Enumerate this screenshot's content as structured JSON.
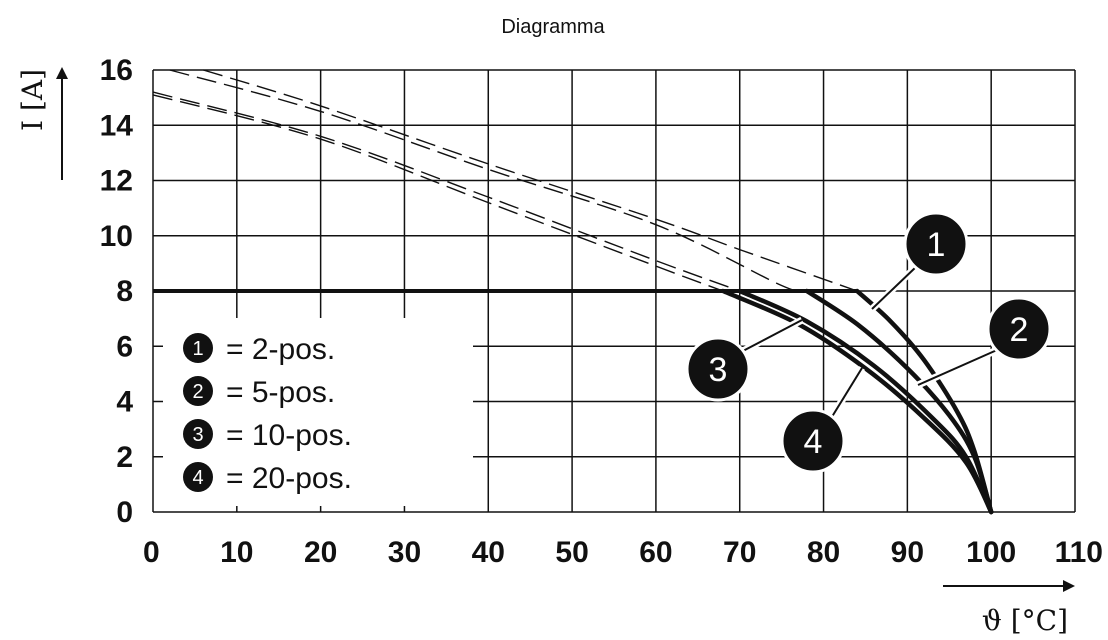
{
  "chart_data": {
    "type": "line",
    "title": "Diagramma",
    "xlabel": "ϑ [°C]",
    "ylabel": "I [A]",
    "xlim": [
      0,
      110
    ],
    "ylim": [
      0,
      16
    ],
    "x_ticks": [
      0,
      10,
      20,
      30,
      40,
      50,
      60,
      70,
      80,
      90,
      100,
      110
    ],
    "y_ticks": [
      0,
      2,
      4,
      6,
      8,
      10,
      12,
      14,
      16
    ],
    "grid": true,
    "max_current_line": {
      "value": 8,
      "x_range": [
        0,
        84
      ]
    },
    "series": [
      {
        "marker": "1",
        "dashed_extension": [
          [
            6,
            16
          ],
          [
            20,
            14.7
          ],
          [
            40,
            12.6
          ],
          [
            60,
            10.6
          ],
          [
            70,
            9.5
          ],
          [
            84,
            8
          ]
        ],
        "solid_curve": [
          [
            84,
            8
          ],
          [
            88,
            6.9
          ],
          [
            92,
            5.5
          ],
          [
            96,
            3.6
          ],
          [
            98,
            2.2
          ],
          [
            100,
            0
          ]
        ]
      },
      {
        "marker": "2",
        "dashed_extension": [
          [
            2,
            16
          ],
          [
            20,
            14.5
          ],
          [
            40,
            12.4
          ],
          [
            60,
            10.4
          ],
          [
            75,
            8.2
          ],
          [
            78,
            8
          ]
        ],
        "solid_curve": [
          [
            78,
            8
          ],
          [
            84,
            6.8
          ],
          [
            90,
            5.2
          ],
          [
            95,
            3.5
          ],
          [
            98,
            2
          ],
          [
            100,
            0
          ]
        ]
      },
      {
        "marker": "3",
        "dashed_extension": [
          [
            0,
            15.2
          ],
          [
            20,
            13.6
          ],
          [
            40,
            11.4
          ],
          [
            60,
            9.1
          ],
          [
            70,
            8
          ]
        ],
        "solid_curve": [
          [
            70,
            8
          ],
          [
            78,
            6.9
          ],
          [
            86,
            5.3
          ],
          [
            93,
            3.4
          ],
          [
            97,
            2
          ],
          [
            100,
            0
          ]
        ]
      },
      {
        "marker": "4",
        "dashed_extension": [
          [
            0,
            15.1
          ],
          [
            20,
            13.5
          ],
          [
            40,
            11.2
          ],
          [
            60,
            8.9
          ],
          [
            68,
            8
          ]
        ],
        "solid_curve": [
          [
            68,
            8
          ],
          [
            77,
            6.8
          ],
          [
            85,
            5.2
          ],
          [
            92,
            3.4
          ],
          [
            97,
            1.8
          ],
          [
            100,
            0
          ]
        ]
      }
    ],
    "legend": {
      "items": [
        {
          "marker": "1",
          "label": "= 2-pos."
        },
        {
          "marker": "2",
          "label": "= 5-pos."
        },
        {
          "marker": "3",
          "label": "= 10-pos."
        },
        {
          "marker": "4",
          "label": "= 20-pos."
        }
      ]
    }
  }
}
